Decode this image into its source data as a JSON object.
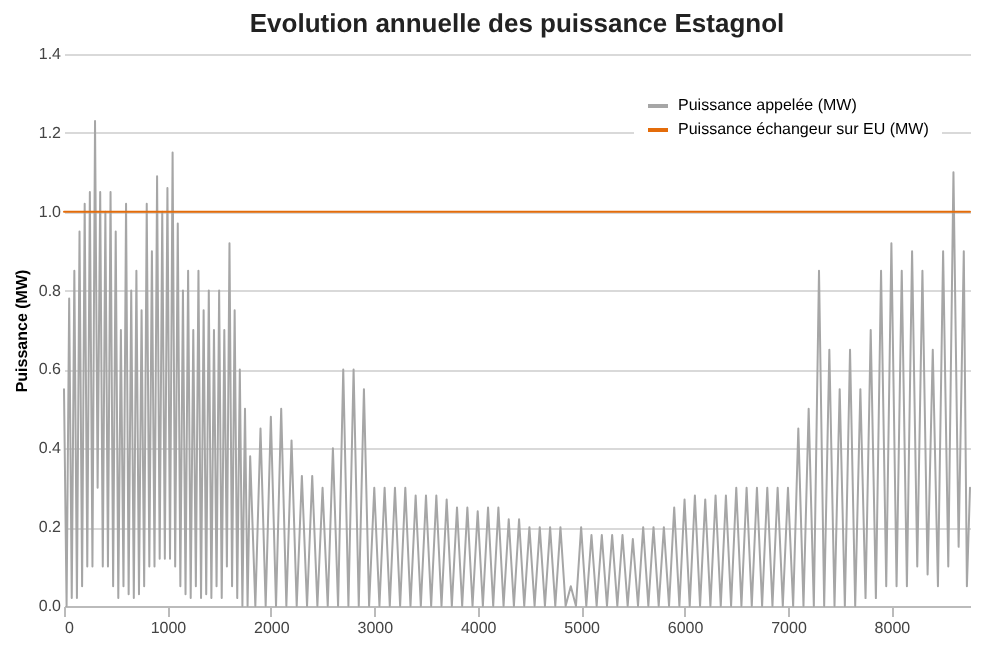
{
  "chart_data": {
    "type": "line",
    "title": "Evolution annuelle des puissance Estagnol",
    "ylabel": "Puissance (MW)",
    "xlim": [
      0,
      8760
    ],
    "xticks": [
      0,
      1000,
      2000,
      3000,
      4000,
      5000,
      6000,
      7000,
      8000
    ],
    "ylim": [
      0,
      1.4
    ],
    "yticks": [
      {
        "value": 0,
        "label": "0.0"
      },
      0.2,
      0.4,
      0.6,
      0.8,
      {
        "value": 1,
        "label": "1.0"
      },
      1.2,
      1.4
    ],
    "grid": "y",
    "legend": "top right",
    "line_style": "solid",
    "series": [
      {
        "name": "Puissance appelée (MW)",
        "color": "#a6a6a6",
        "x": [
          0,
          25,
          50,
          75,
          100,
          125,
          150,
          175,
          200,
          225,
          250,
          275,
          300,
          325,
          350,
          375,
          400,
          425,
          450,
          475,
          500,
          525,
          550,
          575,
          600,
          625,
          650,
          675,
          700,
          725,
          750,
          775,
          800,
          825,
          850,
          875,
          900,
          925,
          950,
          975,
          1000,
          1025,
          1050,
          1075,
          1100,
          1125,
          1150,
          1175,
          1200,
          1225,
          1250,
          1275,
          1300,
          1325,
          1350,
          1375,
          1400,
          1425,
          1450,
          1475,
          1500,
          1525,
          1550,
          1575,
          1600,
          1625,
          1650,
          1675,
          1700,
          1725,
          1750,
          1775,
          1800,
          1850,
          1900,
          1950,
          2000,
          2050,
          2100,
          2150,
          2200,
          2250,
          2300,
          2350,
          2400,
          2450,
          2500,
          2550,
          2600,
          2650,
          2700,
          2750,
          2800,
          2850,
          2900,
          2950,
          3000,
          3050,
          3100,
          3150,
          3200,
          3250,
          3300,
          3350,
          3400,
          3450,
          3500,
          3550,
          3600,
          3650,
          3700,
          3750,
          3800,
          3850,
          3900,
          3950,
          4000,
          4050,
          4100,
          4150,
          4200,
          4250,
          4300,
          4350,
          4400,
          4450,
          4500,
          4550,
          4600,
          4650,
          4700,
          4750,
          4800,
          4850,
          4900,
          4950,
          5000,
          5050,
          5100,
          5150,
          5200,
          5250,
          5300,
          5350,
          5400,
          5450,
          5500,
          5550,
          5600,
          5650,
          5700,
          5750,
          5800,
          5850,
          5900,
          5950,
          6000,
          6050,
          6100,
          6150,
          6200,
          6250,
          6300,
          6350,
          6400,
          6450,
          6500,
          6550,
          6600,
          6650,
          6700,
          6750,
          6800,
          6850,
          6900,
          6950,
          7000,
          7050,
          7100,
          7150,
          7200,
          7250,
          7300,
          7350,
          7400,
          7450,
          7500,
          7550,
          7600,
          7650,
          7700,
          7750,
          7800,
          7850,
          7900,
          7950,
          8000,
          8050,
          8100,
          8150,
          8200,
          8250,
          8300,
          8350,
          8400,
          8450,
          8500,
          8550,
          8600,
          8650,
          8700,
          8730,
          8760
        ],
        "values": [
          0.55,
          0,
          0.78,
          0.02,
          0.85,
          0.02,
          0.95,
          0.05,
          1.02,
          0.1,
          1.05,
          0.1,
          1.23,
          0.3,
          1.05,
          0.1,
          1.0,
          0.1,
          1.05,
          0.05,
          0.95,
          0.02,
          0.7,
          0.05,
          1.02,
          0.03,
          0.8,
          0.02,
          0.85,
          0.03,
          0.75,
          0.05,
          1.02,
          0.1,
          0.9,
          0.1,
          1.09,
          0.12,
          1.0,
          0.12,
          1.06,
          0.12,
          1.15,
          0.1,
          0.97,
          0.05,
          0.8,
          0.03,
          0.85,
          0.02,
          0.7,
          0.05,
          0.85,
          0.02,
          0.75,
          0.03,
          0.8,
          0.02,
          0.7,
          0.05,
          0.8,
          0.02,
          0.7,
          0.1,
          0.92,
          0.05,
          0.75,
          0.02,
          0.6,
          0,
          0.5,
          0,
          0.38,
          0,
          0.45,
          0,
          0.48,
          0,
          0.5,
          0,
          0.42,
          0,
          0.33,
          0,
          0.33,
          0,
          0.3,
          0,
          0.4,
          0,
          0.6,
          0,
          0.6,
          0,
          0.55,
          0,
          0.3,
          0,
          0.3,
          0,
          0.3,
          0,
          0.3,
          0,
          0.28,
          0,
          0.28,
          0,
          0.28,
          0,
          0.27,
          0,
          0.25,
          0,
          0.25,
          0,
          0.24,
          0,
          0.25,
          0,
          0.25,
          0,
          0.22,
          0,
          0.22,
          0,
          0.2,
          0,
          0.2,
          0,
          0.2,
          0,
          0.2,
          0,
          0.05,
          0,
          0.2,
          0,
          0.18,
          0,
          0.18,
          0,
          0.18,
          0,
          0.18,
          0,
          0.17,
          0,
          0.2,
          0,
          0.2,
          0,
          0.2,
          0,
          0.25,
          0,
          0.27,
          0,
          0.28,
          0,
          0.27,
          0,
          0.28,
          0,
          0.28,
          0,
          0.3,
          0,
          0.3,
          0,
          0.3,
          0,
          0.3,
          0,
          0.3,
          0,
          0.3,
          0,
          0.45,
          0,
          0.5,
          0,
          0.85,
          0,
          0.65,
          0,
          0.55,
          0,
          0.65,
          0,
          0.55,
          0.02,
          0.7,
          0.02,
          0.85,
          0.05,
          0.92,
          0.05,
          0.85,
          0.05,
          0.9,
          0.1,
          0.85,
          0.08,
          0.65,
          0.05,
          0.9,
          0.1,
          1.1,
          0.15,
          0.9,
          0.05,
          0.3
        ]
      },
      {
        "name": "Puissance échangeur sur EU (MW)",
        "color": "#e46c0a",
        "x": [
          0,
          8760
        ],
        "values": [
          1.0,
          1.0
        ]
      }
    ]
  }
}
